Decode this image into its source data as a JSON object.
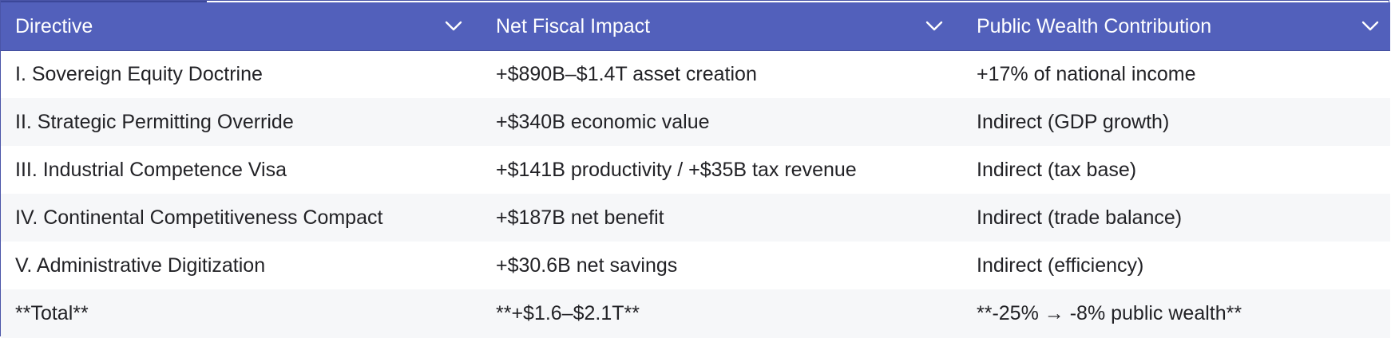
{
  "table": {
    "headers": [
      "Directive",
      "Net Fiscal Impact",
      "Public Wealth Contribution"
    ],
    "header_icon": "chevron-down-icon",
    "rows": [
      [
        "I. Sovereign Equity Doctrine",
        "+$890B–$1.4T asset creation",
        "+17% of national income"
      ],
      [
        "II. Strategic Permitting Override",
        "+$340B economic value",
        "Indirect (GDP growth)"
      ],
      [
        "III. Industrial Competence Visa",
        "+$141B productivity / +$35B tax revenue",
        "Indirect (tax base)"
      ],
      [
        "IV. Continental Competitiveness Compact",
        "+$187B net benefit",
        "Indirect (trade balance)"
      ],
      [
        "V. Administrative Digitization",
        "+$30.6B net savings",
        "Indirect (efficiency)"
      ],
      [
        "**Total**",
        "**+$1.6–$2.1T**",
        "**-25% → -8% public wealth**"
      ]
    ]
  },
  "colors": {
    "header_bg": "#5260bb",
    "header_text": "#ffffff",
    "row_alt_bg": "#f6f7f9",
    "border": "#4a55a8"
  }
}
